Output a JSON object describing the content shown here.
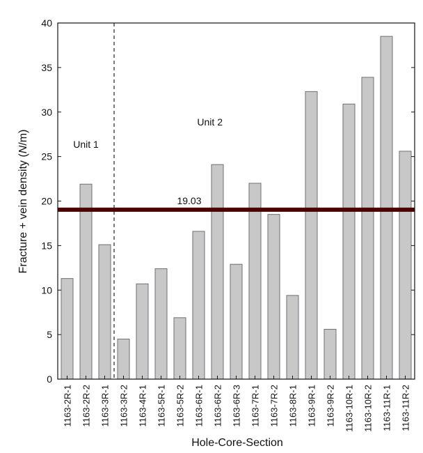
{
  "chart_data": {
    "type": "bar",
    "xlabel": "Hole-Core-Section",
    "ylabel_prefix": "Fracture + vein density (",
    "ylabel_unit": "N",
    "ylabel_suffix": "/m)",
    "ylim": [
      0,
      40
    ],
    "yticks": [
      0,
      5,
      10,
      15,
      20,
      25,
      30,
      35,
      40
    ],
    "categories": [
      "1163-2R-1",
      "1163-2R-2",
      "1163-3R-1",
      "1163-3R-2",
      "1163-4R-1",
      "1163-5R-1",
      "1163-5R-2",
      "1163-6R-1",
      "1163-6R-2",
      "1163-6R-3",
      "1163-7R-1",
      "1163-7R-2",
      "1163-8R-1",
      "1163-9R-1",
      "1163-9R-2",
      "1163-10R-1",
      "1163-10R-2",
      "1163-11R-1",
      "1163-11R-2"
    ],
    "values": [
      11.3,
      21.9,
      15.1,
      4.5,
      10.7,
      12.4,
      6.9,
      16.6,
      24.1,
      12.9,
      22.0,
      18.5,
      9.4,
      32.3,
      5.6,
      30.9,
      33.9,
      38.5,
      25.6
    ],
    "reference_line": {
      "value": 19.03,
      "label": "19.03",
      "color": "#4a0000"
    },
    "divider_after_index": 2,
    "annotations": [
      {
        "text": "Unit 1",
        "x_index": 1,
        "y": 26
      },
      {
        "text": "Unit 2",
        "x_index": 7.6,
        "y": 28.5
      }
    ],
    "bar_color": "#c8c8c8",
    "bar_edge_color": "#6e6e78",
    "grid": false
  }
}
